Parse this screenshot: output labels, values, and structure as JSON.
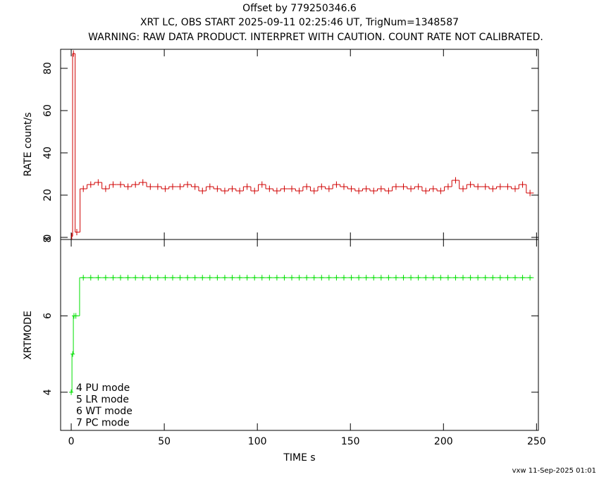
{
  "chart_data": [
    {
      "type": "step",
      "title": "Offset by 779250346.6",
      "subtitle": "XRT LC, OBS START 2025-09-11 02:25:46 UT, TrigNum=1348587",
      "note": "WARNING: RAW DATA PRODUCT. INTERPRET WITH CAUTION. COUNT RATE NOT CALIBRATED.",
      "ylabel": "RATE  count/s",
      "xlim": [
        -5.7,
        251
      ],
      "xticks": [
        0,
        50,
        100,
        150,
        200,
        250
      ],
      "ylim": [
        -1,
        89
      ],
      "yticks": [
        0,
        20,
        40,
        60,
        80
      ],
      "series": [
        {
          "color": "#d00000",
          "yerr": 1.5,
          "x": [
            0.3,
            1.2,
            3.0,
            6.5,
            10.5,
            14.5,
            18.5,
            22.5,
            26.5,
            30.5,
            34.5,
            38.5,
            42.5,
            46.5,
            50.5,
            54.5,
            58.5,
            62.5,
            66.5,
            70.5,
            74.5,
            78.5,
            82.5,
            86.5,
            90.5,
            94.5,
            98.5,
            102.5,
            106.5,
            110.5,
            114.5,
            118.5,
            122.5,
            126.5,
            130.5,
            134.5,
            138.5,
            142.5,
            146.5,
            150.5,
            154.5,
            158.5,
            162.5,
            166.5,
            170.5,
            174.5,
            178.5,
            182.5,
            186.5,
            190.5,
            194.5,
            198.5,
            202.5,
            206.5,
            210.5,
            214.5,
            218.5,
            222.5,
            226.5,
            230.5,
            234.5,
            238.5,
            242.5,
            246.5
          ],
          "values": [
            0.5,
            87,
            2.5,
            23,
            25,
            26,
            23,
            25,
            25,
            24,
            25,
            26,
            24,
            24,
            23,
            24,
            24,
            25,
            24,
            22,
            24,
            23,
            22,
            23,
            22,
            24,
            22,
            25,
            23,
            22,
            23,
            23,
            22,
            24,
            22,
            24,
            23,
            25,
            24,
            23,
            22,
            23,
            22,
            23,
            22,
            24,
            24,
            23,
            24,
            22,
            23,
            22,
            24,
            27,
            23,
            25,
            24,
            24,
            23,
            24,
            24,
            23,
            25,
            21
          ]
        }
      ]
    },
    {
      "type": "step",
      "xlabel": "TIME  s",
      "ylabel": "XRTMODE",
      "xlim": [
        -5.7,
        251
      ],
      "xticks": [
        0,
        50,
        100,
        150,
        200,
        250
      ],
      "ylim": [
        3,
        8
      ],
      "yticks": [
        4,
        6,
        8
      ],
      "annotations": [
        "4 PU mode",
        "5 LR mode",
        "6 WT mode",
        "7 PC mode"
      ],
      "series": [
        {
          "color": "#00e000",
          "x": [
            0,
            0.8,
            1.5,
            2.5,
            6.5,
            10.5,
            14.5,
            18.5,
            22.5,
            26.5,
            30.5,
            34.5,
            38.5,
            42.5,
            46.5,
            50.5,
            54.5,
            58.5,
            62.5,
            66.5,
            70.5,
            74.5,
            78.5,
            82.5,
            86.5,
            90.5,
            94.5,
            98.5,
            102.5,
            106.5,
            110.5,
            114.5,
            118.5,
            122.5,
            126.5,
            130.5,
            134.5,
            138.5,
            142.5,
            146.5,
            150.5,
            154.5,
            158.5,
            162.5,
            166.5,
            170.5,
            174.5,
            178.5,
            182.5,
            186.5,
            190.5,
            194.5,
            198.5,
            202.5,
            206.5,
            210.5,
            214.5,
            218.5,
            222.5,
            226.5,
            230.5,
            234.5,
            238.5,
            242.5,
            246.5
          ],
          "values": [
            4,
            5,
            6,
            6,
            7,
            7,
            7,
            7,
            7,
            7,
            7,
            7,
            7,
            7,
            7,
            7,
            7,
            7,
            7,
            7,
            7,
            7,
            7,
            7,
            7,
            7,
            7,
            7,
            7,
            7,
            7,
            7,
            7,
            7,
            7,
            7,
            7,
            7,
            7,
            7,
            7,
            7,
            7,
            7,
            7,
            7,
            7,
            7,
            7,
            7,
            7,
            7,
            7,
            7,
            7,
            7,
            7,
            7,
            7,
            7,
            7,
            7,
            7,
            7,
            7
          ]
        }
      ]
    }
  ],
  "footer": "vxw 11-Sep-2025 01:01"
}
